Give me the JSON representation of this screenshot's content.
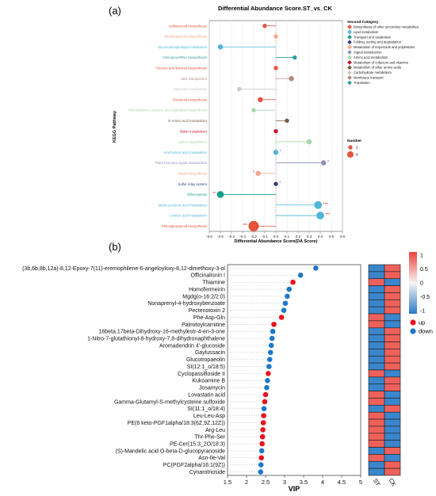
{
  "panel_a": {
    "label": "(a)",
    "title": "Differential Abundance Score.ST_vs_CK",
    "ylabel": "KEGG Pathway",
    "xlabel": "Differential Abundance Score(DA Score)",
    "legend_category_title": "Second Category",
    "legend_number_title": "Number",
    "legend_number_entries": [
      "2",
      "9"
    ]
  },
  "panel_b": {
    "label": "(b)",
    "xlabel": "VIP",
    "legend_up": "up",
    "legend_down": "down",
    "heatmap_columns": [
      "ST",
      "CK"
    ],
    "colorbar_ticks": [
      "1",
      "0.5",
      "0",
      "-0.5",
      "-1"
    ]
  },
  "colors": {
    "up": "#e8141e",
    "down": "#1f78c8",
    "heat_pos": "#f0605a",
    "heat_neg": "#3a86cc",
    "heat_border": "#1a1a1a"
  },
  "chart_data": [
    {
      "type": "scatter",
      "subtype": "lollipop",
      "title": "Differential Abundance Score.ST_vs_CK",
      "xlabel": "Differential Abundance Score(DA Score)",
      "ylabel": "KEGG Pathway",
      "xlim": [
        -0.6,
        0.6
      ],
      "xticks": [
        "-0.6",
        "-0.5",
        "-0.4",
        "-0.3",
        "-0.2",
        "-0.1",
        "0.0",
        "0.1",
        "0.2",
        "0.3",
        "0.4",
        "0.5",
        "0.6"
      ],
      "grid": true,
      "legend_position": "right",
      "categories": [
        {
          "name": "Biosynthesis of other secondary metabolites",
          "color": "#e5533d"
        },
        {
          "name": "Lipid metabolism",
          "color": "#4fb6d8"
        },
        {
          "name": "Transport and catabolism",
          "color": "#1a9e8a"
        },
        {
          "name": "Folding, sorting and degradation",
          "color": "#2e3f7f"
        },
        {
          "name": "Metabolism of terpenoids and polyketides",
          "color": "#f2a58a"
        },
        {
          "name": "Signal transduction",
          "color": "#8d93b8"
        },
        {
          "name": "Amino acid metabolism",
          "color": "#a8d8a8"
        },
        {
          "name": "Metabolism of cofactors and vitamins",
          "color": "#c8102e"
        },
        {
          "name": "Metabolism of other amino acids",
          "color": "#7a5a44"
        },
        {
          "name": "Carbohydrate metabolism",
          "color": "#c8c8c8"
        },
        {
          "name": "Membrane transport",
          "color": "#b08a82"
        },
        {
          "name": "Translation",
          "color": "#2aa198"
        }
      ],
      "points": [
        {
          "pathway": "Isoflavonoid biosynthesis",
          "category": "Biosynthesis of other secondary metabolites",
          "da": -0.1,
          "number": 2,
          "sig": ""
        },
        {
          "pathway": "Monoterpenoid biosynthesis",
          "category": "Metabolism of terpenoids and polyketides",
          "da": 0.0,
          "number": 2,
          "sig": ""
        },
        {
          "pathway": "Glycerophospholipid metabolism",
          "category": "Lipid metabolism",
          "da": -0.5,
          "number": 3,
          "sig": ""
        },
        {
          "pathway": "Aminoacyl-tRNA biosynthesis",
          "category": "Translation",
          "da": 0.17,
          "number": 2,
          "sig": ""
        },
        {
          "pathway": "Flavone and flavonol biosynthesis",
          "category": "Biosynthesis of other secondary metabolites",
          "da": 0.0,
          "number": 2,
          "sig": ""
        },
        {
          "pathway": "ABC transporters",
          "category": "Membrane transport",
          "da": 0.14,
          "number": 3,
          "sig": ""
        },
        {
          "pathway": "Galactose metabolism",
          "category": "Carbohydrate metabolism",
          "da": -0.33,
          "number": 2,
          "sig": ""
        },
        {
          "pathway": "Flavonoid biosynthesis",
          "category": "Biosynthesis of other secondary metabolites",
          "da": -0.14,
          "number": 3,
          "sig": ""
        },
        {
          "pathway": "Phenylalanine, tyrosine and tryptophan biosynthesis",
          "category": "Amino acid metabolism",
          "da": -0.2,
          "number": 2,
          "sig": ""
        },
        {
          "pathway": "D-Amino acid metabolism",
          "category": "Metabolism of other amino acids",
          "da": 0.1,
          "number": 2,
          "sig": ""
        },
        {
          "pathway": "Biotin metabolism",
          "category": "Metabolism of cofactors and vitamins",
          "da": 0.0,
          "number": 2,
          "sig": ""
        },
        {
          "pathway": "Lysine degradation",
          "category": "Amino acid metabolism",
          "da": 0.3,
          "number": 3,
          "sig": ""
        },
        {
          "pathway": "Arachidonic acid metabolism",
          "category": "Lipid metabolism",
          "da": 0.0,
          "number": 3,
          "sig": "*"
        },
        {
          "pathway": "Plant hormone signal transduction",
          "category": "Signal transduction",
          "da": 0.43,
          "number": 3,
          "sig": "*"
        },
        {
          "pathway": "Zeatin biosynthesis",
          "category": "Metabolism of terpenoids and polyketides",
          "da": -0.16,
          "number": 3,
          "sig": "*"
        },
        {
          "pathway": "Sulfur relay system",
          "category": "Folding, sorting and degradation",
          "da": 0.0,
          "number": 2,
          "sig": "*"
        },
        {
          "pathway": "Efferocytosis",
          "category": "Transport and catabolism",
          "da": -0.5,
          "number": 5,
          "sig": "**"
        },
        {
          "pathway": "alpha-Linolenic acid metabolism",
          "category": "Lipid metabolism",
          "da": 0.38,
          "number": 6,
          "sig": "***"
        },
        {
          "pathway": "Linoleic acid metabolism",
          "category": "Lipid metabolism",
          "da": 0.4,
          "number": 6,
          "sig": "***"
        },
        {
          "pathway": "Phenylpropanoid biosynthesis",
          "category": "Biosynthesis of other secondary metabolites",
          "da": -0.2,
          "number": 9,
          "sig": "***"
        }
      ]
    },
    {
      "type": "scatter",
      "subtype": "dot",
      "xlabel": "VIP",
      "xlim": [
        1.5,
        5
      ],
      "xticks": [
        "1.5",
        "2",
        "2.5",
        "3",
        "3.5",
        "4",
        "4.5",
        "5"
      ],
      "legend_position": "right",
      "series": [
        {
          "name": "up"
        },
        {
          "name": "down"
        }
      ],
      "points": [
        {
          "name": "(3b,6b,8b,12a)-8,12-Epoxy-7(11)-eremophilene-6-angeloyloxy-8,12-dimethoxy-3-ol",
          "vip": 3.82,
          "dir": "down"
        },
        {
          "name": "Officinalisnin I",
          "vip": 3.42,
          "dir": "down"
        },
        {
          "name": "Thiamine",
          "vip": 3.22,
          "dir": "up"
        },
        {
          "name": "Homofermeirin",
          "vip": 3.12,
          "dir": "down"
        },
        {
          "name": "Mgdg(o-16:2/2:0)",
          "vip": 3.07,
          "dir": "down"
        },
        {
          "name": "Nonaprenyl-4-hydroxybenzoate",
          "vip": 3.02,
          "dir": "down"
        },
        {
          "name": "Pectenotoxin 2",
          "vip": 2.98,
          "dir": "down"
        },
        {
          "name": "Phe-Asp-Gln",
          "vip": 2.92,
          "dir": "up"
        },
        {
          "name": "Palmitoylcarnitine",
          "vip": 2.72,
          "dir": "up"
        },
        {
          "name": "16beta,17beta-Dihydroxy-16-methylestr-4-en-3-one",
          "vip": 2.69,
          "dir": "down"
        },
        {
          "name": "1-Nitro-7-glutathionyl-8-hydroxy-7,8-dihydronaphthalene",
          "vip": 2.67,
          "dir": "down"
        },
        {
          "name": "Aromadendrin 4'-glucoside",
          "vip": 2.65,
          "dir": "down"
        },
        {
          "name": "Gaylussacin",
          "vip": 2.63,
          "dir": "down"
        },
        {
          "name": "Glucotropaeolin",
          "vip": 2.61,
          "dir": "down"
        },
        {
          "name": "SI(12:1_o/18:5)",
          "vip": 2.59,
          "dir": "down"
        },
        {
          "name": "Cyclopassifloside II",
          "vip": 2.57,
          "dir": "up"
        },
        {
          "name": "Kukoamine B",
          "vip": 2.55,
          "dir": "down"
        },
        {
          "name": "Josamycin",
          "vip": 2.53,
          "dir": "down"
        },
        {
          "name": "Lovastatin acid",
          "vip": 2.5,
          "dir": "up"
        },
        {
          "name": "Gamma-Glutamyl-S-methylcysteine sulfoxide",
          "vip": 2.48,
          "dir": "up"
        },
        {
          "name": "SI(11:1_o/18:4)",
          "vip": 2.46,
          "dir": "down"
        },
        {
          "name": "Leu-Leu-Asp",
          "vip": 2.45,
          "dir": "up"
        },
        {
          "name": "PE(6 keto-PGF1alpha/18:3(6Z,9Z,12Z))",
          "vip": 2.44,
          "dir": "up"
        },
        {
          "name": "Arg-Leu",
          "vip": 2.43,
          "dir": "up"
        },
        {
          "name": "Thr-Phe-Ser",
          "vip": 2.42,
          "dir": "up"
        },
        {
          "name": "PE-Cer(15:3_2O/18:3)",
          "vip": 2.41,
          "dir": "up"
        },
        {
          "name": "(S)-Mandelic acid O-beta-D-glucopyranoside",
          "vip": 2.4,
          "dir": "down"
        },
        {
          "name": "Asn-Ile-Val",
          "vip": 2.39,
          "dir": "up"
        },
        {
          "name": "PC(PGF2alpha/16:1(9Z))",
          "vip": 2.38,
          "dir": "down"
        },
        {
          "name": "Cynarotrioside",
          "vip": 2.37,
          "dir": "down"
        }
      ]
    }
  ]
}
